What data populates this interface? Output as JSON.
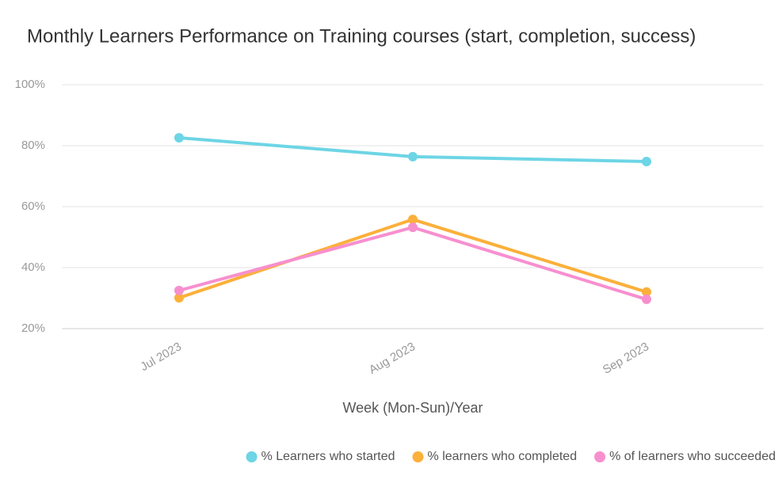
{
  "chart_data": {
    "type": "line",
    "title": "Monthly Learners Performance on Training courses (start, completion, success)",
    "x_label": "Week (Mon-Sun)/Year",
    "categories": [
      "Jul 2023",
      "Aug 2023",
      "Sep 2023"
    ],
    "series": [
      {
        "name": "% Learners who started",
        "color": "#6dd5e5",
        "values": [
          82.6,
          76.4,
          74.8
        ]
      },
      {
        "name": "% learners who completed",
        "color": "#fbb03b",
        "values": [
          30.1,
          55.8,
          32.0
        ]
      },
      {
        "name": "% of learners who succeeded",
        "color": "#f78fcf",
        "values": [
          32.5,
          53.2,
          29.6
        ]
      }
    ],
    "ylim": [
      20,
      100
    ],
    "yticks": [
      {
        "value": 20,
        "label": "20%"
      },
      {
        "value": 40,
        "label": "40%"
      },
      {
        "value": 60,
        "label": "60%"
      },
      {
        "value": 80,
        "label": "80%"
      },
      {
        "value": 100,
        "label": "100%"
      }
    ],
    "grid": true,
    "legend": "bottom-right"
  }
}
